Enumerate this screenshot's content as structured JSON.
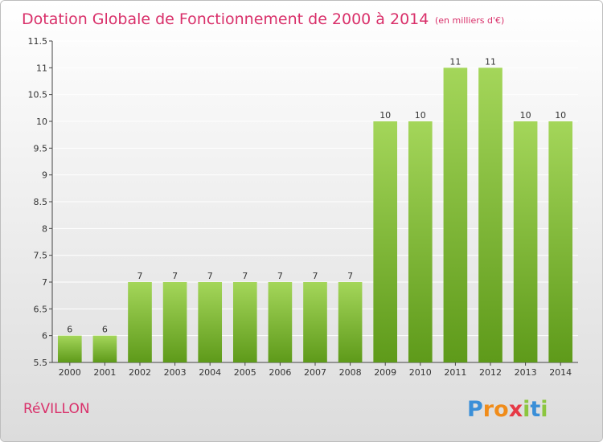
{
  "header": {
    "title": "Dotation Globale de Fonctionnement de 2000 à 2014",
    "unit": "(en milliers d'€)"
  },
  "footer": {
    "commune": "RéVILLON",
    "logo": [
      "P",
      "r",
      "o",
      "x",
      "i",
      "t",
      "i"
    ]
  },
  "colors": {
    "title": "#d9306a",
    "bar_light": "#a4d65a",
    "bar_dark": "#5e9a1a",
    "grid": "#ffffff",
    "background_top": "#ffffff",
    "background_bottom": "#dcdcdc",
    "logo": [
      "#3a8fd8",
      "#f08c1a",
      "#f08c1a",
      "#e63946",
      "#8cc63f",
      "#3a8fd8",
      "#8cc63f"
    ]
  },
  "chart_data": {
    "type": "bar",
    "title": "Dotation Globale de Fonctionnement de 2000 à 2014",
    "subtitle": "(en milliers d'€)",
    "xlabel": "",
    "ylabel": "",
    "categories": [
      "2000",
      "2001",
      "2002",
      "2003",
      "2004",
      "2005",
      "2006",
      "2007",
      "2008",
      "2009",
      "2010",
      "2011",
      "2012",
      "2013",
      "2014"
    ],
    "values": [
      6,
      6,
      7,
      7,
      7,
      7,
      7,
      7,
      7,
      10,
      10,
      11,
      11,
      10,
      10
    ],
    "ylim": [
      5.5,
      11.5
    ],
    "yticks": [
      "5.5",
      "6",
      "6.5",
      "7",
      "7.5",
      "8",
      "8.5",
      "9",
      "9.5",
      "10",
      "10.5",
      "11",
      "11.5"
    ],
    "grid": true,
    "legend": "none"
  }
}
